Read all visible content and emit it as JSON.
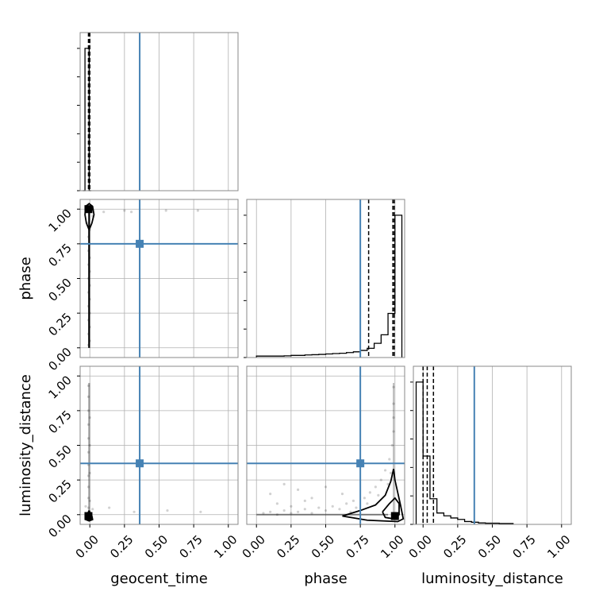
{
  "chart_data": {
    "type": "corner",
    "parameters": [
      "geocent_time",
      "phase",
      "luminosity_distance"
    ],
    "axis_labels": {
      "geocent_time": "geocent_time",
      "phase": "phase",
      "luminosity_distance": "luminosity_distance"
    },
    "range": [
      -0.07,
      1.07
    ],
    "tick_values": [
      0.0,
      0.25,
      0.5,
      0.75,
      1.0
    ],
    "tick_labels": [
      "0.00",
      "0.25",
      "0.50",
      "0.75",
      "1.00"
    ],
    "grid": true,
    "colors": {
      "truth": "#4682b4",
      "samples": "#000000",
      "grid": "#b0b0b0",
      "frame": "#888888"
    },
    "truths": {
      "geocent_time": 0.36,
      "phase": 0.75,
      "luminosity_distance": 0.37
    },
    "quantiles": {
      "geocent_time": [
        -0.01,
        -0.005,
        0.0
      ],
      "phase": [
        0.81,
        0.985,
        0.995
      ],
      "luminosity_distance": [
        0.0,
        0.03,
        0.075
      ]
    },
    "histograms": {
      "geocent_time": {
        "edges": [
          -0.05,
          -0.035,
          -0.02,
          -0.005,
          0.01
        ],
        "density": [
          0.0,
          1.0,
          1.0,
          0.0
        ]
      },
      "phase": {
        "edges": [
          0.0,
          0.05,
          0.1,
          0.15,
          0.2,
          0.25,
          0.3,
          0.35,
          0.4,
          0.45,
          0.5,
          0.55,
          0.6,
          0.65,
          0.7,
          0.75,
          0.8,
          0.85,
          0.9,
          0.95,
          1.0,
          1.05
        ],
        "density": [
          0.01,
          0.01,
          0.01,
          0.01,
          0.012,
          0.015,
          0.015,
          0.018,
          0.02,
          0.022,
          0.025,
          0.028,
          0.03,
          0.035,
          0.04,
          0.05,
          0.065,
          0.1,
          0.16,
          0.31,
          1.0
        ]
      },
      "luminosity_distance": {
        "edges": [
          -0.05,
          0.0,
          0.05,
          0.1,
          0.15,
          0.2,
          0.25,
          0.3,
          0.35,
          0.4,
          0.45,
          0.5,
          0.55,
          0.6,
          0.65
        ],
        "density": [
          1.0,
          0.48,
          0.18,
          0.08,
          0.06,
          0.045,
          0.035,
          0.02,
          0.015,
          0.01,
          0.008,
          0.008,
          0.006,
          0.006
        ]
      }
    },
    "samples_2d": {
      "phase_vs_geocent_time": [
        [
          -0.01,
          0.02
        ],
        [
          -0.01,
          0.1
        ],
        [
          -0.01,
          0.2
        ],
        [
          -0.01,
          0.3
        ],
        [
          -0.01,
          0.4
        ],
        [
          -0.01,
          0.5
        ],
        [
          -0.01,
          0.6
        ],
        [
          -0.01,
          0.7
        ],
        [
          -0.01,
          0.8
        ],
        [
          0.0,
          0.05
        ],
        [
          0.0,
          0.15
        ],
        [
          0.0,
          0.25
        ],
        [
          0.0,
          0.35
        ],
        [
          0.0,
          0.45
        ],
        [
          0.0,
          0.55
        ],
        [
          0.0,
          0.65
        ],
        [
          0.0,
          0.75
        ],
        [
          0.0,
          0.85
        ],
        [
          -0.02,
          0.9
        ],
        [
          0.02,
          0.95
        ],
        [
          0.1,
          0.98
        ],
        [
          0.25,
          0.99
        ],
        [
          0.55,
          0.99
        ],
        [
          0.78,
          0.99
        ],
        [
          0.3,
          0.98
        ]
      ],
      "luminosity_distance_vs_geocent_time": [
        [
          -0.01,
          0.05
        ],
        [
          -0.01,
          0.12
        ],
        [
          -0.01,
          0.2
        ],
        [
          -0.01,
          0.28
        ],
        [
          -0.01,
          0.36
        ],
        [
          -0.01,
          0.45
        ],
        [
          -0.01,
          0.55
        ],
        [
          -0.01,
          0.65
        ],
        [
          -0.01,
          0.75
        ],
        [
          -0.01,
          0.85
        ],
        [
          -0.01,
          0.93
        ],
        [
          0.0,
          0.1
        ],
        [
          0.0,
          0.3
        ],
        [
          0.0,
          0.5
        ],
        [
          0.0,
          0.7
        ],
        [
          -0.03,
          0.06
        ],
        [
          0.02,
          0.04
        ],
        [
          0.14,
          0.05
        ],
        [
          0.32,
          0.02
        ],
        [
          0.56,
          0.03
        ],
        [
          0.8,
          0.02
        ]
      ],
      "luminosity_distance_vs_phase": [
        [
          0.05,
          0.01
        ],
        [
          0.1,
          0.02
        ],
        [
          0.15,
          0.0
        ],
        [
          0.2,
          0.03
        ],
        [
          0.25,
          0.01
        ],
        [
          0.3,
          0.02
        ],
        [
          0.35,
          0.04
        ],
        [
          0.4,
          0.01
        ],
        [
          0.45,
          0.05
        ],
        [
          0.5,
          0.03
        ],
        [
          0.55,
          0.06
        ],
        [
          0.6,
          0.04
        ],
        [
          0.65,
          0.08
        ],
        [
          0.7,
          0.1
        ],
        [
          0.72,
          0.05
        ],
        [
          0.78,
          0.12
        ],
        [
          0.82,
          0.16
        ],
        [
          0.86,
          0.2
        ],
        [
          0.9,
          0.25
        ],
        [
          0.93,
          0.32
        ],
        [
          0.96,
          0.4
        ],
        [
          0.98,
          0.5
        ],
        [
          0.99,
          0.6
        ],
        [
          0.99,
          0.7
        ],
        [
          0.99,
          0.8
        ],
        [
          0.99,
          0.92
        ],
        [
          0.97,
          0.3
        ],
        [
          0.95,
          0.22
        ],
        [
          0.88,
          0.14
        ],
        [
          0.8,
          0.08
        ],
        [
          0.1,
          0.15
        ],
        [
          0.2,
          0.22
        ],
        [
          0.3,
          0.18
        ],
        [
          0.35,
          0.1
        ],
        [
          0.15,
          0.08
        ],
        [
          0.5,
          0.2
        ],
        [
          0.62,
          0.15
        ],
        [
          0.4,
          0.12
        ],
        [
          0.25,
          0.06
        ],
        [
          0.68,
          0.02
        ]
      ]
    },
    "contours": {
      "phase_vs_geocent_time": [
        [
          -0.005,
          0.85
        ],
        [
          -0.025,
          0.9
        ],
        [
          -0.035,
          0.96
        ],
        [
          -0.03,
          1.02
        ],
        [
          -0.005,
          1.04
        ],
        [
          0.02,
          1.02
        ],
        [
          0.03,
          0.96
        ],
        [
          0.015,
          0.9
        ],
        [
          -0.005,
          0.85
        ],
        [
          -0.005,
          0.0
        ]
      ],
      "luminosity_distance_vs_geocent_time": [
        [
          -0.005,
          0.03
        ],
        [
          -0.025,
          -0.01
        ],
        [
          -0.03,
          -0.035
        ],
        [
          -0.005,
          -0.045
        ],
        [
          0.02,
          -0.035
        ],
        [
          0.015,
          -0.01
        ],
        [
          -0.005,
          0.03
        ]
      ],
      "luminosity_distance_vs_phase_outer": [
        [
          0.62,
          -0.01
        ],
        [
          0.75,
          0.03
        ],
        [
          0.86,
          0.07
        ],
        [
          0.93,
          0.14
        ],
        [
          0.97,
          0.24
        ],
        [
          0.99,
          0.33
        ],
        [
          1.0,
          0.25
        ],
        [
          1.04,
          0.07
        ],
        [
          1.06,
          -0.03
        ],
        [
          1.02,
          -0.05
        ],
        [
          0.8,
          -0.04
        ],
        [
          0.62,
          -0.01
        ]
      ],
      "luminosity_distance_vs_phase_inner": [
        [
          0.91,
          0.02
        ],
        [
          0.96,
          0.08
        ],
        [
          1.0,
          0.12
        ],
        [
          1.03,
          0.08
        ],
        [
          1.03,
          0.0
        ],
        [
          0.99,
          -0.03
        ],
        [
          0.93,
          -0.02
        ],
        [
          0.91,
          0.02
        ]
      ]
    },
    "modes": {
      "phase_vs_geocent_time": [
        -0.01,
        1.0
      ],
      "luminosity_distance_vs_geocent_time": [
        -0.01,
        -0.01
      ],
      "luminosity_distance_vs_phase": [
        1.0,
        -0.01
      ]
    }
  }
}
